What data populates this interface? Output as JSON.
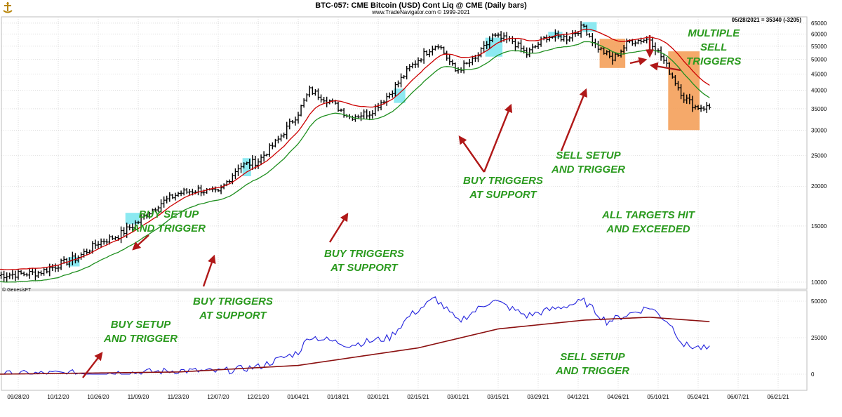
{
  "header": {
    "title": "BTC-057:  CME Bitcoin (USD) Cont Liq @ CME  (Daily bars)",
    "subtitle": "www.TradeNavigator.com © 1999-2021",
    "last_bar": "05/28/2021 = 35340 (-3205)",
    "copyright": "© GenesisFT"
  },
  "annotations": [
    {
      "lines": [
        "BUY SETUP",
        "AND TRIGGER"
      ]
    },
    {
      "lines": [
        "BUY TRIGGERS",
        "AT SUPPORT"
      ]
    },
    {
      "lines": [
        "BUY TRIGGERS",
        "AT SUPPORT"
      ]
    },
    {
      "lines": [
        "BUY TRIGGERS",
        "AT SUPPORT"
      ]
    },
    {
      "lines": [
        "SELL SETUP",
        "AND TRIGGER"
      ]
    },
    {
      "lines": [
        "MULTIPLE",
        "SELL",
        "TRIGGERS"
      ]
    },
    {
      "lines": [
        "ALL TARGETS HIT",
        "AND EXCEEDED"
      ]
    },
    {
      "lines": [
        "BUY SETUP",
        "AND TRIGGER"
      ]
    },
    {
      "lines": [
        "SELL SETUP",
        "AND TRIGGER"
      ]
    }
  ],
  "colors": {
    "price_bars": "#000000",
    "upper_band": "#cc0000",
    "lower_band": "#1f8f1f",
    "setup_highlight": "#7fe7f0",
    "sell_highlight": "#f4a05a",
    "indicator_fast": "#2222dd",
    "indicator_slow": "#8b1010",
    "annotation_text": "#2a9a1e",
    "arrow": "#b01818",
    "grid": "#c8c8c8"
  },
  "chart_data": [
    {
      "type": "ohlc",
      "name": "price panel",
      "x_tick_labels": [
        "09/28/20",
        "10/12/20",
        "10/26/20",
        "11/09/20",
        "11/23/20",
        "12/07/20",
        "12/21/20",
        "01/04/21",
        "01/18/21",
        "02/01/21",
        "02/15/21",
        "03/01/21",
        "03/15/21",
        "03/29/21",
        "04/12/21",
        "04/26/21",
        "05/10/21",
        "05/24/21",
        "06/07/21",
        "06/21/21"
      ],
      "y_tick_labels": [
        "65000",
        "60000",
        "55000",
        "50000",
        "45000",
        "40000",
        "35000",
        "30000",
        "25000",
        "20000",
        "15000",
        "10000"
      ],
      "y_scale": "log",
      "ylim": [
        9500,
        68000
      ],
      "grid": true,
      "price_anchors": [
        {
          "date": "09/21/20",
          "close": 10500
        },
        {
          "date": "10/05/20",
          "close": 10700
        },
        {
          "date": "10/19/20",
          "close": 12000
        },
        {
          "date": "10/26/20",
          "close": 13300
        },
        {
          "date": "11/02/20",
          "close": 14000
        },
        {
          "date": "11/09/20",
          "close": 15500
        },
        {
          "date": "11/16/20",
          "close": 17500
        },
        {
          "date": "11/23/20",
          "close": 19000
        },
        {
          "date": "11/30/20",
          "close": 19500
        },
        {
          "date": "12/07/20",
          "close": 19000
        },
        {
          "date": "12/14/20",
          "close": 23000
        },
        {
          "date": "12/21/20",
          "close": 24000
        },
        {
          "date": "12/28/20",
          "close": 28000
        },
        {
          "date": "01/04/21",
          "close": 34000
        },
        {
          "date": "01/08/21",
          "close": 40000
        },
        {
          "date": "01/15/21",
          "close": 37000
        },
        {
          "date": "01/22/21",
          "close": 33000
        },
        {
          "date": "01/29/21",
          "close": 34000
        },
        {
          "date": "02/05/21",
          "close": 39000
        },
        {
          "date": "02/12/21",
          "close": 47000
        },
        {
          "date": "02/19/21",
          "close": 54000
        },
        {
          "date": "02/22/21",
          "close": 56000
        },
        {
          "date": "02/28/21",
          "close": 46000
        },
        {
          "date": "03/07/21",
          "close": 50000
        },
        {
          "date": "03/13/21",
          "close": 59000
        },
        {
          "date": "03/20/21",
          "close": 57000
        },
        {
          "date": "03/25/21",
          "close": 52000
        },
        {
          "date": "04/01/21",
          "close": 59000
        },
        {
          "date": "04/08/21",
          "close": 58500
        },
        {
          "date": "04/14/21",
          "close": 63500
        },
        {
          "date": "04/18/21",
          "close": 55500
        },
        {
          "date": "04/24/21",
          "close": 50000
        },
        {
          "date": "04/30/21",
          "close": 57000
        },
        {
          "date": "05/07/21",
          "close": 58000
        },
        {
          "date": "05/12/21",
          "close": 49500
        },
        {
          "date": "05/19/21",
          "close": 38000
        },
        {
          "date": "05/23/21",
          "close": 35500
        },
        {
          "date": "05/28/21",
          "close": 35340
        }
      ],
      "setup_highlights": [
        {
          "from": "10/16/20",
          "to": "10/19/20",
          "low": 11200,
          "high": 12000,
          "color": "cyan"
        },
        {
          "from": "11/05/20",
          "to": "11/09/20",
          "low": 15200,
          "high": 16500,
          "color": "cyan"
        },
        {
          "from": "12/16/20",
          "to": "12/18/20",
          "low": 21500,
          "high": 24500,
          "color": "cyan"
        },
        {
          "from": "02/07/21",
          "to": "02/10/21",
          "low": 36500,
          "high": 40500,
          "color": "cyan"
        },
        {
          "from": "03/11/21",
          "to": "03/16/21",
          "low": 51000,
          "high": 58500,
          "color": "cyan"
        },
        {
          "from": "04/02/21",
          "to": "04/06/21",
          "low": 58500,
          "high": 61000,
          "color": "cyan"
        },
        {
          "from": "04/14/21",
          "to": "04/18/21",
          "low": 61000,
          "high": 65500,
          "color": "cyan"
        },
        {
          "from": "04/20/21",
          "to": "04/28/21",
          "low": 47000,
          "high": 58000,
          "color": "orange"
        },
        {
          "from": "05/14/21",
          "to": "05/24/21",
          "low": 30000,
          "high": 53000,
          "color": "orange"
        }
      ],
      "bands": [
        "upper (red)",
        "lower (green)"
      ]
    },
    {
      "type": "line",
      "name": "indicator panel",
      "y_tick_labels": [
        "50000",
        "25000",
        "0"
      ],
      "series": [
        {
          "color": "blue",
          "anchors": [
            [
              "09/21/20",
              0
            ],
            [
              "10/19/20",
              700
            ],
            [
              "11/09/20",
              1200
            ],
            [
              "11/23/20",
              2500
            ],
            [
              "12/07/20",
              1800
            ],
            [
              "12/21/20",
              5000
            ],
            [
              "01/04/21",
              15000
            ],
            [
              "01/08/21",
              26000
            ],
            [
              "01/22/21",
              20000
            ],
            [
              "02/05/21",
              25000
            ],
            [
              "02/12/21",
              40000
            ],
            [
              "02/21/21",
              52000
            ],
            [
              "03/01/21",
              36000
            ],
            [
              "03/13/21",
              51000
            ],
            [
              "03/25/21",
              40000
            ],
            [
              "04/14/21",
              50000
            ],
            [
              "04/22/21",
              36000
            ],
            [
              "05/07/21",
              46000
            ],
            [
              "05/14/21",
              35000
            ],
            [
              "05/19/21",
              20000
            ],
            [
              "05/28/21",
              17000
            ]
          ]
        },
        {
          "color": "dark red",
          "anchors": [
            [
              "09/21/20",
              0
            ],
            [
              "11/23/20",
              1500
            ],
            [
              "01/04/21",
              6000
            ],
            [
              "02/15/21",
              18000
            ],
            [
              "03/15/21",
              31000
            ],
            [
              "04/14/21",
              37000
            ],
            [
              "05/07/21",
              39000
            ],
            [
              "05/28/21",
              36000
            ]
          ]
        }
      ]
    }
  ]
}
